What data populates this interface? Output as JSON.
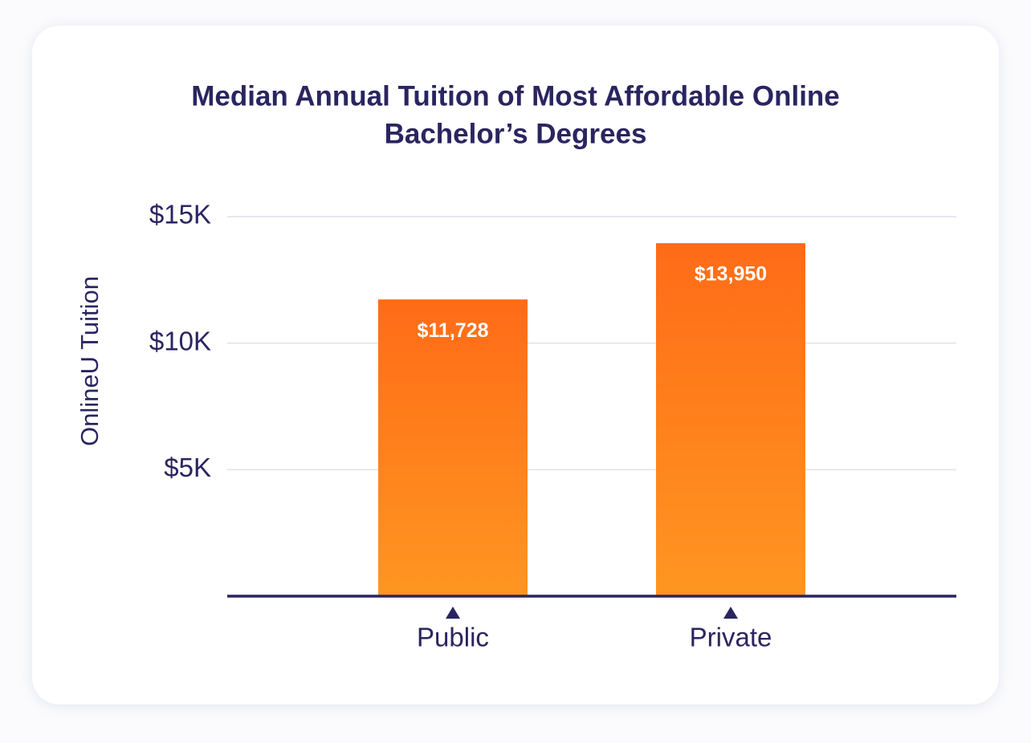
{
  "chart_data": {
    "type": "bar",
    "title": [
      "Median Annual Tuition of Most Affordable Online",
      "Bachelor’s Degrees"
    ],
    "y_label": "OnlineU Tuition",
    "categories": [
      "Public",
      "Private"
    ],
    "values": [
      11728,
      13950
    ],
    "value_labels": [
      "$11,728",
      "$13,950"
    ],
    "color": [
      "#ff6b17",
      "#ff9621"
    ],
    "ylim": [
      0,
      15000
    ],
    "yticks": [
      {
        "value": 5000,
        "label": "$5K"
      },
      {
        "value": 10000,
        "label": "$10K"
      },
      {
        "value": 15000,
        "label": "$15K"
      }
    ],
    "grid": true
  }
}
